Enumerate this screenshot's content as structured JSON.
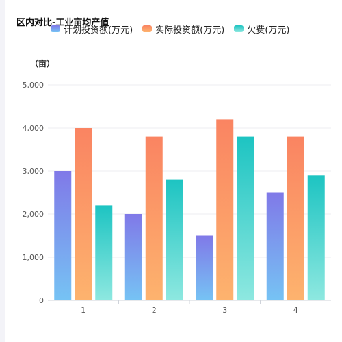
{
  "chart_data": {
    "type": "bar",
    "title": "区内对比-工业亩均产值",
    "ylabel": "（亩）",
    "xlabel": "",
    "categories": [
      "1",
      "2",
      "3",
      "4"
    ],
    "ylim": [
      0,
      5000
    ],
    "yticks": [
      0,
      1000,
      2000,
      3000,
      4000,
      5000
    ],
    "ytick_labels": [
      "0",
      "1,000",
      "2,000",
      "3,000",
      "4,000",
      "5,000"
    ],
    "grid": true,
    "legend_position": "top",
    "series": [
      {
        "name": "计划投资额(万元)",
        "values": [
          3000,
          2000,
          1500,
          2500
        ],
        "color_top": "#8079e8",
        "color_bottom": "#76c3f4"
      },
      {
        "name": "实际投资额(万元)",
        "values": [
          4000,
          3800,
          4200,
          3800
        ],
        "color_top": "#fa8462",
        "color_bottom": "#fdb36e"
      },
      {
        "name": "欠费(万元)",
        "values": [
          2200,
          2800,
          3800,
          2900
        ],
        "color_top": "#1dc4c2",
        "color_bottom": "#8ee8e0"
      }
    ]
  }
}
